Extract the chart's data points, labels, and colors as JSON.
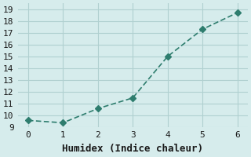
{
  "x": [
    0,
    1,
    2,
    3,
    4,
    5,
    6
  ],
  "y": [
    9.6,
    9.4,
    10.6,
    11.5,
    15.0,
    17.3,
    18.7
  ],
  "xlabel": "Humidex (Indice chaleur)",
  "xlim": [
    -0.3,
    6.3
  ],
  "ylim": [
    9,
    19.5
  ],
  "yticks": [
    9,
    10,
    11,
    12,
    13,
    14,
    15,
    16,
    17,
    18,
    19
  ],
  "xticks": [
    0,
    1,
    2,
    3,
    4,
    5,
    6
  ],
  "line_color": "#2e7d6e",
  "marker": "D",
  "marker_size": 4,
  "bg_color": "#d6ecec",
  "grid_color": "#b0d0d0",
  "label_fontsize": 9,
  "tick_fontsize": 8
}
